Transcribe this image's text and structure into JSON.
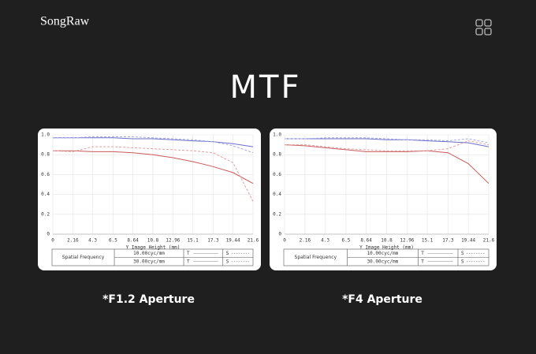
{
  "brand": "SongRaw",
  "title": "MTF",
  "chart_data": [
    {
      "type": "line",
      "caption": "*F1.2 Aperture",
      "xlabel": "Y Image Height (mm)",
      "x": [
        0,
        2.16,
        4.3,
        6.5,
        8.64,
        10.8,
        12.96,
        15.1,
        17.3,
        19.44,
        21.6
      ],
      "xlim": [
        0,
        21.6
      ],
      "xticks": [
        0,
        2.16,
        4.3,
        6.5,
        8.64,
        10.8,
        12.96,
        15.1,
        17.3,
        19.44,
        21.6
      ],
      "ylim": [
        0,
        1
      ],
      "yticks": [
        0,
        0.2,
        0.4,
        0.6,
        0.8,
        {
          "value": 1,
          "label": "1.0"
        }
      ],
      "grid": true,
      "series": [
        {
          "color": "#6a6fc9",
          "dashed": false,
          "values": [
            0.97,
            0.97,
            0.97,
            0.97,
            0.96,
            0.96,
            0.95,
            0.94,
            0.93,
            0.91,
            0.88
          ]
        },
        {
          "color": "#a9acdf",
          "dashed": true,
          "values": [
            0.97,
            0.97,
            0.98,
            0.98,
            0.98,
            0.97,
            0.96,
            0.95,
            0.93,
            0.89,
            0.82
          ]
        },
        {
          "color": "#c95a5a",
          "dashed": false,
          "values": [
            0.84,
            0.84,
            0.83,
            0.83,
            0.82,
            0.8,
            0.77,
            0.73,
            0.68,
            0.62,
            0.51
          ]
        },
        {
          "color": "#e2a0a0",
          "dashed": true,
          "values": [
            0.84,
            0.83,
            0.88,
            0.88,
            0.87,
            0.86,
            0.85,
            0.84,
            0.82,
            0.72,
            0.33
          ]
        }
      ],
      "legend": {
        "header": "Spatial Frequency",
        "rows": [
          [
            "10.00cyc/mm",
            "T",
            "S"
          ],
          [
            "30.00cyc/mm",
            "T",
            "S"
          ]
        ]
      }
    },
    {
      "type": "line",
      "caption": "*F4 Aperture",
      "xlabel": "Y Image Height (mm)",
      "x": [
        0,
        2.16,
        4.3,
        6.5,
        8.64,
        10.8,
        12.96,
        15.1,
        17.3,
        19.44,
        21.6
      ],
      "xlim": [
        0,
        21.6
      ],
      "xticks": [
        0,
        2.16,
        4.3,
        6.5,
        8.64,
        10.8,
        12.96,
        15.1,
        17.3,
        19.44,
        21.6
      ],
      "ylim": [
        0,
        1
      ],
      "yticks": [
        0,
        0.2,
        0.4,
        0.6,
        0.8,
        {
          "value": 1,
          "label": "1.0"
        }
      ],
      "grid": true,
      "series": [
        {
          "color": "#6a6fc9",
          "dashed": false,
          "values": [
            0.96,
            0.96,
            0.96,
            0.96,
            0.96,
            0.95,
            0.95,
            0.94,
            0.93,
            0.92,
            0.88
          ]
        },
        {
          "color": "#a9acdf",
          "dashed": true,
          "values": [
            0.96,
            0.96,
            0.97,
            0.97,
            0.97,
            0.96,
            0.95,
            0.95,
            0.94,
            0.96,
            0.92
          ]
        },
        {
          "color": "#c95a5a",
          "dashed": false,
          "values": [
            0.9,
            0.89,
            0.87,
            0.85,
            0.83,
            0.83,
            0.83,
            0.84,
            0.82,
            0.71,
            0.51
          ]
        },
        {
          "color": "#e2a0a0",
          "dashed": true,
          "values": [
            0.9,
            0.9,
            0.88,
            0.86,
            0.85,
            0.84,
            0.84,
            0.84,
            0.86,
            0.94,
            0.9
          ]
        }
      ],
      "legend": {
        "header": "Spatial Frequency",
        "rows": [
          [
            "10.00cyc/mm",
            "T",
            "S"
          ],
          [
            "30.00cyc/mm",
            "T",
            "S"
          ]
        ]
      }
    }
  ]
}
